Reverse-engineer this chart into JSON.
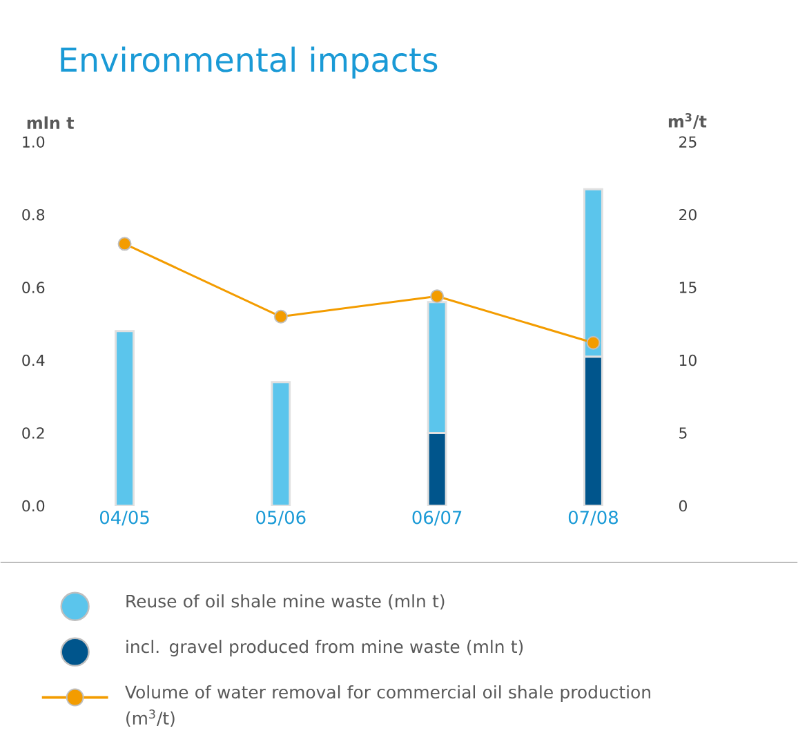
{
  "chart_data": {
    "type": "bar",
    "title": "Environmental impacts",
    "ylabel": "mln t",
    "y2label": "m$^{3}$/t",
    "categories": [
      "04/05",
      "05/06",
      "06/07",
      "07/08"
    ],
    "stacked": true,
    "legend": "bottom",
    "grid": false,
    "ylim": [
      0,
      1
    ],
    "yticks": [
      {
        "value": 0,
        "label": "0.0"
      },
      0.2,
      0.4,
      0.6,
      0.8,
      {
        "value": 1,
        "label": "1.0"
      }
    ],
    "y2lim": [
      0,
      25
    ],
    "y2ticks": [
      0,
      5,
      10,
      15,
      20,
      25
    ],
    "series": [
      {
        "name": "incl. gravel produced from mine waste (mln t)",
        "color": "#00558c",
        "values": [
          null,
          null,
          0.2,
          0.41
        ]
      },
      {
        "name": "Reuse of oil shale mine waste (mln t)",
        "color": "#5bc5ec",
        "values": [
          0.48,
          0.34,
          0.36,
          0.46
        ]
      },
      {
        "type": "line",
        "axis": "y2",
        "marker": "circle",
        "line_style": "solid",
        "name": "Volume of water removal for commercial oil shale production (m$^{3}$/t)",
        "color": "#f39c00",
        "values": [
          18.0,
          13.0,
          14.4,
          11.2
        ]
      }
    ]
  }
}
